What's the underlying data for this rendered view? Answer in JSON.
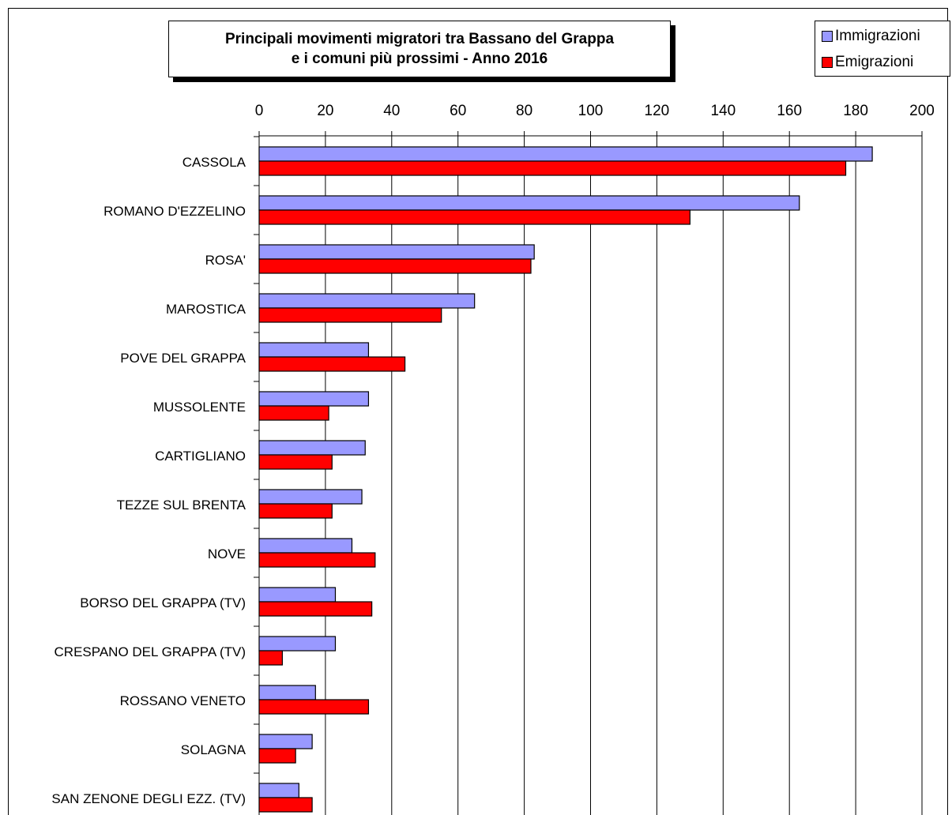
{
  "chart_data": {
    "type": "bar",
    "orientation": "horizontal",
    "title_line1": "Principali movimenti migratori tra Bassano del Grappa",
    "title_line2": "e i comuni più prossimi - Anno 2016",
    "xlim": [
      0,
      200
    ],
    "x_ticks": [
      "0",
      "20",
      "40",
      "60",
      "80",
      "100",
      "120",
      "140",
      "160",
      "180",
      "200"
    ],
    "x_axis_position": "top",
    "grid": "vertical",
    "legend_position": "top-right",
    "categories": [
      "CASSOLA",
      "ROMANO D'EZZELINO",
      "ROSA'",
      "MAROSTICA",
      "POVE DEL GRAPPA",
      "MUSSOLENTE",
      "CARTIGLIANO",
      "TEZZE SUL BRENTA",
      "NOVE",
      "BORSO DEL GRAPPA (TV)",
      "CRESPANO DEL GRAPPA (TV)",
      "ROSSANO VENETO",
      "SOLAGNA",
      "SAN ZENONE DEGLI EZZ. (TV)"
    ],
    "series": [
      {
        "name": "Immigrazioni",
        "color": "#9999ff",
        "values": [
          185,
          163,
          83,
          65,
          33,
          33,
          32,
          31,
          28,
          23,
          23,
          17,
          16,
          12
        ]
      },
      {
        "name": "Emigrazioni",
        "color": "#ff0000",
        "values": [
          177,
          130,
          82,
          55,
          44,
          21,
          22,
          22,
          35,
          34,
          7,
          33,
          11,
          16
        ]
      }
    ]
  }
}
